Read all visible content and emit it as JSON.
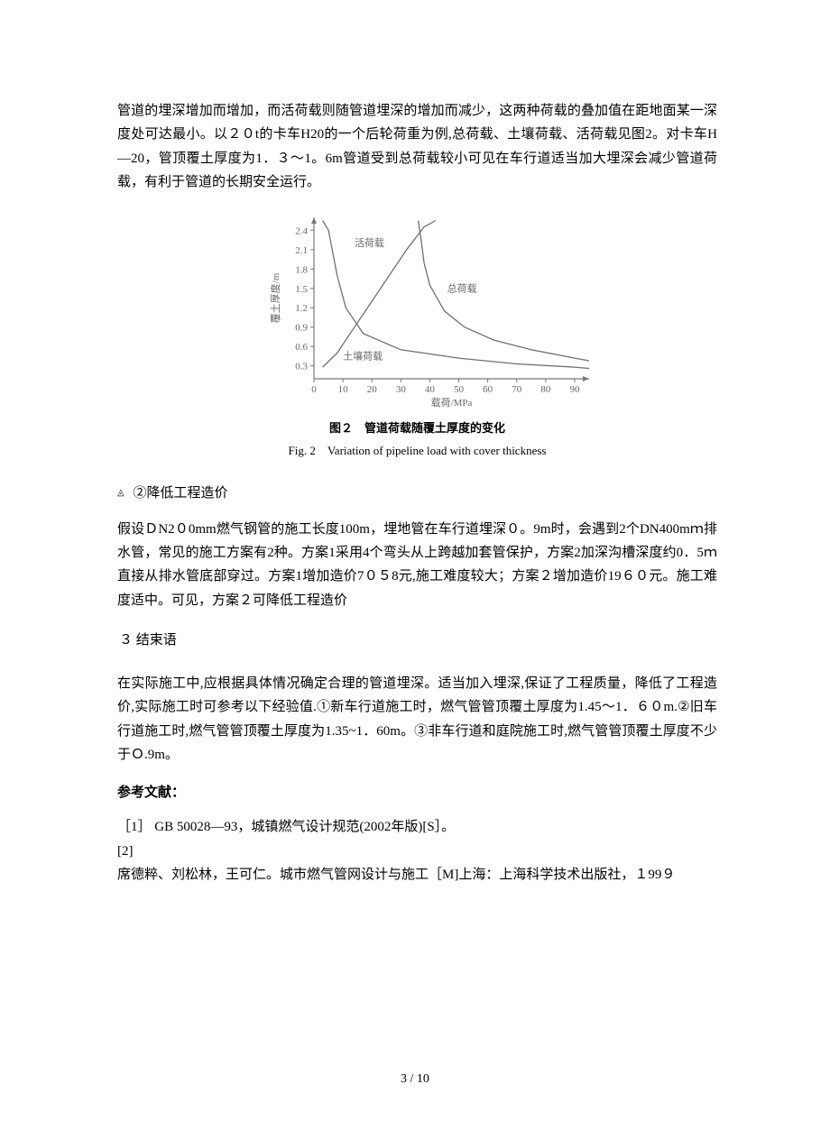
{
  "p1": "管道的埋深增加而增加，而活荷载则随管道埋深的增加而减少，这两种荷载的叠加值在距地面某一深度处可达最小。以２０t的卡车H20的一个后轮荷重为例,总荷载、土壤荷载、活荷载见图2。对卡车H—20，管顶覆土厚度为1．３～1。6m管道受到总荷载较小可见在车行道适当加大埋深会减少管道荷载，有利于管道的长期安全运行。",
  "figure": {
    "caption_cn": "图２　管道荷载随覆土厚度的变化",
    "caption_en": "Fig. 2　Variation of pipeline load with cover thickness",
    "xlabel": "载荷/MPa",
    "ylabel": "覆土厚度/m",
    "x_ticks": [
      0,
      10,
      20,
      30,
      40,
      50,
      60,
      70,
      80,
      90
    ],
    "y_ticks": [
      0.3,
      0.6,
      0.9,
      1.2,
      1.5,
      1.8,
      2.1,
      2.4
    ],
    "xlim": [
      0,
      95
    ],
    "ylim": [
      0.1,
      2.6
    ],
    "axis_color": "#777",
    "label_color": "#666",
    "curves": {
      "live": {
        "label": "活荷载",
        "points": [
          [
            3,
            2.55
          ],
          [
            5,
            2.4
          ],
          [
            8,
            1.7
          ],
          [
            11,
            1.2
          ],
          [
            17,
            0.8
          ],
          [
            30,
            0.55
          ],
          [
            50,
            0.42
          ],
          [
            70,
            0.33
          ],
          [
            90,
            0.28
          ],
          [
            95,
            0.26
          ]
        ]
      },
      "soil": {
        "label": "土壤荷载",
        "points": [
          [
            3,
            0.28
          ],
          [
            8,
            0.5
          ],
          [
            14,
            0.9
          ],
          [
            20,
            1.3
          ],
          [
            26,
            1.7
          ],
          [
            32,
            2.1
          ],
          [
            38,
            2.45
          ],
          [
            42,
            2.55
          ]
        ]
      },
      "total": {
        "label": "总荷载",
        "points": [
          [
            36,
            2.55
          ],
          [
            37,
            2.25
          ],
          [
            38,
            1.9
          ],
          [
            40,
            1.55
          ],
          [
            45,
            1.15
          ],
          [
            52,
            0.9
          ],
          [
            62,
            0.7
          ],
          [
            75,
            0.55
          ],
          [
            90,
            0.42
          ],
          [
            95,
            0.38
          ]
        ]
      }
    },
    "curve_color": "#707070",
    "curve_width": 1.3,
    "label_fontsize": 11
  },
  "bullet": "②降低工程造价",
  "p2": "假设ＤN2０0mm燃气钢管的施工长度100m，埋地管在车行道埋深０。9m时，会遇到2个DN400mｍ排水管，常见的施工方案有2种。方案1采用4个弯头从上跨越加套管保护，方案2加深沟槽深度约0．5ｍ直接从排水管底部穿过。方案1增加造价7０５8元,施工难度较大；方案２增加造价19６０元。施工难度适中。可见，方案２可降低工程造价",
  "sec3": "３ 结束语",
  "p3": "在实际施工中,应根据具体情况确定合理的管道埋深。适当加入埋深,保证了工程质量，降低了工程造价,实际施工时可参考以下经验值.①新车行道施工时，燃气管管顶覆土厚度为1.45～1．６０m.②旧车行道施工时,燃气管管顶覆土厚度为1.35~1．60m。③非车行道和庭院施工时,燃气管管顶覆土厚度不少于Ｏ.9m。",
  "refs_title": "参考文献：",
  "ref1": "［1］ GB 50028―93，城镇燃气设计规范(2002年版)[S］。",
  "ref2a": "[2]",
  "ref2b": "席德粹、刘松林，王可仁。城市燃气管网设计与施工［M]上海：上海科学技术出版社，１99９",
  "pager": "3 / 10"
}
